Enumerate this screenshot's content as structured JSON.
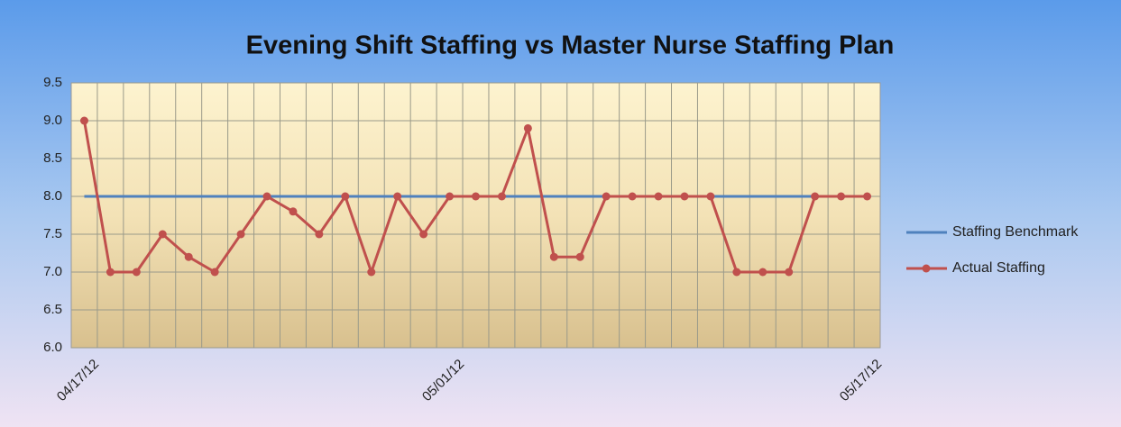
{
  "chart_data": {
    "type": "line",
    "title": "Evening Shift Staffing vs Master Nurse Staffing Plan",
    "categories": [
      "04/17/12",
      null,
      null,
      null,
      null,
      null,
      null,
      null,
      null,
      null,
      null,
      null,
      null,
      null,
      "05/01/12",
      null,
      null,
      null,
      null,
      null,
      null,
      null,
      null,
      null,
      null,
      null,
      null,
      null,
      null,
      null,
      "05/17/12"
    ],
    "series": [
      {
        "name": "Staffing Benchmark",
        "color": "#4f81bd",
        "marker": false,
        "values": [
          8,
          8,
          8,
          8,
          8,
          8,
          8,
          8,
          8,
          8,
          8,
          8,
          8,
          8,
          8,
          8,
          8,
          8,
          8,
          8,
          8,
          8,
          8,
          8,
          8,
          8,
          8,
          8,
          8,
          8,
          8
        ]
      },
      {
        "name": "Actual Staffing",
        "color": "#c0504d",
        "marker": true,
        "values": [
          9.0,
          7.0,
          7.0,
          7.5,
          7.2,
          7.0,
          7.5,
          8.0,
          7.8,
          7.5,
          8.0,
          7.0,
          8.0,
          7.5,
          8.0,
          8.0,
          8.0,
          8.9,
          7.2,
          7.2,
          8.0,
          8.0,
          8.0,
          8.0,
          8.0,
          7.0,
          7.0,
          7.0,
          8.0,
          8.0,
          8.0
        ]
      }
    ],
    "ylim": [
      6,
      9.5
    ],
    "yticks": [
      {
        "value": 6,
        "label": "6.0"
      },
      6.5,
      {
        "value": 7,
        "label": "7.0"
      },
      7.5,
      {
        "value": 8,
        "label": "8.0"
      },
      8.5,
      {
        "value": 9,
        "label": "9.0"
      },
      9.5
    ],
    "grid": true,
    "legend": "right"
  }
}
